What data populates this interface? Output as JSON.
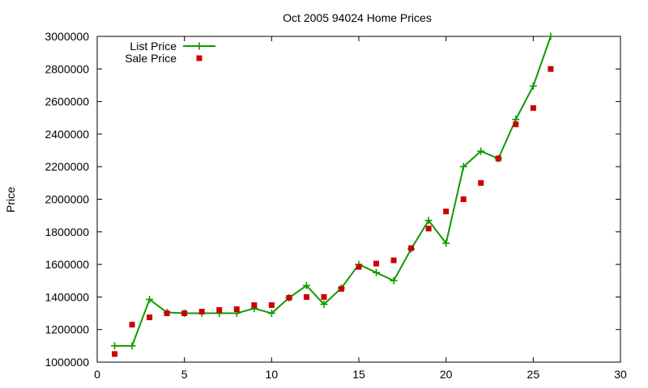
{
  "chart_data": {
    "type": "line",
    "title": "Oct 2005 94024 Home Prices",
    "xlabel": "",
    "ylabel": "Price",
    "xlim": [
      0,
      30
    ],
    "ylim": [
      1000000,
      3000000
    ],
    "x_ticks": [
      0,
      5,
      10,
      15,
      20,
      25,
      30
    ],
    "y_ticks": [
      1000000,
      1200000,
      1400000,
      1600000,
      1800000,
      2000000,
      2200000,
      2400000,
      2600000,
      2800000,
      3000000
    ],
    "grid": false,
    "legend_position": "top-left",
    "series": [
      {
        "name": "List Price",
        "style": "line+plus",
        "color": "#119900",
        "x": [
          1,
          2,
          3,
          4,
          5,
          6,
          7,
          8,
          9,
          10,
          11,
          12,
          13,
          14,
          15,
          16,
          17,
          18,
          19,
          20,
          21,
          22,
          23,
          24,
          25,
          26
        ],
        "y": [
          1100000,
          1100000,
          1385000,
          1305000,
          1300000,
          1300000,
          1300000,
          1300000,
          1330000,
          1300000,
          1395000,
          1470000,
          1355000,
          1455000,
          1600000,
          1550000,
          1500000,
          1695000,
          1870000,
          1730000,
          2200000,
          2295000,
          2250000,
          2490000,
          2695000,
          3000000
        ]
      },
      {
        "name": "Sale Price",
        "style": "square",
        "color": "#cc0000",
        "x": [
          1,
          2,
          3,
          4,
          5,
          6,
          7,
          8,
          9,
          10,
          11,
          12,
          13,
          14,
          15,
          16,
          17,
          18,
          19,
          20,
          21,
          22,
          23,
          24,
          25,
          26
        ],
        "y": [
          1050000,
          1230000,
          1275000,
          1300000,
          1300000,
          1310000,
          1320000,
          1325000,
          1350000,
          1350000,
          1395000,
          1400000,
          1400000,
          1450000,
          1585000,
          1605000,
          1625000,
          1700000,
          1820000,
          1925000,
          2000000,
          2100000,
          2250000,
          2460000,
          2560000,
          2800000
        ]
      }
    ]
  }
}
